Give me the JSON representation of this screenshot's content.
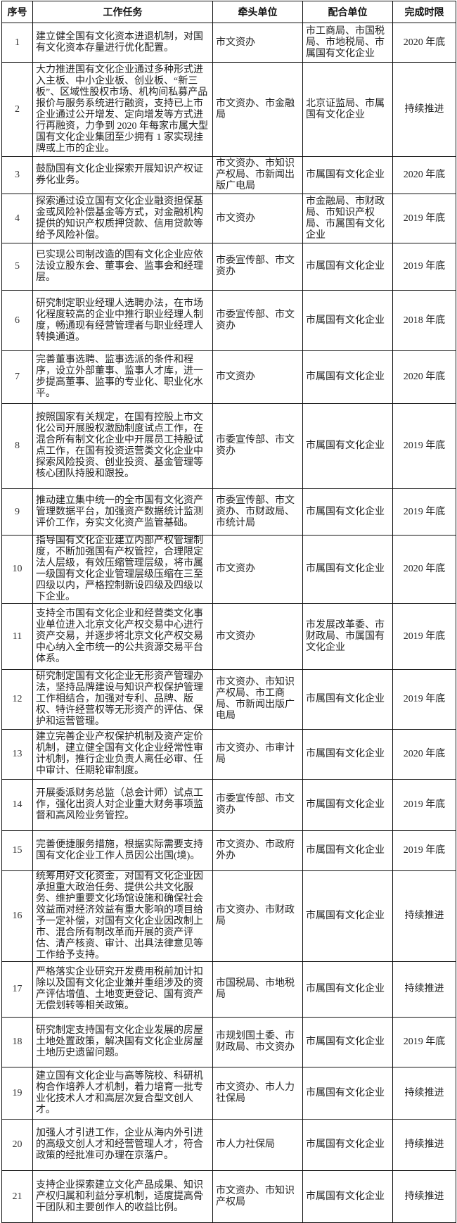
{
  "headers": [
    "序号",
    "工作任务",
    "牵头单位",
    "配合单位",
    "完成时限"
  ],
  "rows": [
    {
      "no": "1",
      "task": "建立健全国有文化资本进退机制，对国有文化资本存量进行优化配置。",
      "lead": "市文资办",
      "coop": "市工商局、市国税局、市地税局、市属国有文化企业",
      "deadline": "2020 年底"
    },
    {
      "no": "2",
      "task": "大力推进国有文化企业通过多种形式进入主板、中小企业板、创业板、“新三板”、区域性股权市场、机构间私募产品报价与服务系统进行融资，支持已上市企业通过公开增发、定向增发等方式进行再融资，力争到 2020 年每家市属大型国有文化企业集团至少拥有 1 家实现挂牌或上市的企业。",
      "lead": "市文资办、市金融局",
      "coop": "北京证监局、市属国有文化企业",
      "deadline": "持续推进"
    },
    {
      "no": "3",
      "task": "鼓励国有文化企业探索开展知识产权证券化业务。",
      "lead": "市文资办、市知识产权局、市新闻出版广电局",
      "coop": "市属国有文化企业",
      "deadline": "2020 年底"
    },
    {
      "no": "4",
      "task": "探索通过设立国有文化企业融资担保基金或风险补偿基金等方式，对金融机构提供的知识产权质押贷款、信用贷款等给予风险补偿。",
      "lead": "市文资办",
      "coop": "市金融局、市财政局、市知识产权局、市属国有文化企业",
      "deadline": "2019 年底"
    },
    {
      "no": "5",
      "task": "已实现公司制改造的国有文化企业应依法设立股东会、董事会、监事会和经理层。",
      "lead": "市委宣传部、市文资办",
      "coop": "市属国有文化企业",
      "deadline": "2019 年底"
    },
    {
      "no": "6",
      "task": "研究制定职业经理人选聘办法，在市场化程度较高的企业中推行职业经理人制度，畅通现有经营管理者与职业经理人转换通道。",
      "lead": "市委宣传部、市文资办",
      "coop": "市属国有文化企业",
      "deadline": "2018 年底"
    },
    {
      "no": "7",
      "task": "完善董事选聘、监事选派的条件和程序，设立外部董事、监事人才库，进一步提高董事、监事的专业化、职业化水平。",
      "lead": "市文资办",
      "coop": "市属国有文化企业",
      "deadline": "2020 年底"
    },
    {
      "no": "8",
      "task": "按照国家有关规定，在国有控股上市文化公司开展股权激励制度试点工作，在混合所有制文化企业中开展员工持股试点工作，在国有投资运营类文化企业中探索风险投资、创业投资、基金管理等核心团队持股和跟投。",
      "lead": "市委宣传部、市文资办",
      "coop": "市属国有文化企业",
      "deadline": "2019 年底"
    },
    {
      "no": "9",
      "task": "推动建立集中统一的全市国有文化资产管理数据平台，加强资产数据统计监测评价工作，夯实文化资产监管基础。",
      "lead": "市委宣传部、市文资办、市财政局、市统计局",
      "coop": "市属国有文化企业",
      "deadline": "2019 年底"
    },
    {
      "no": "10",
      "task": "指导国有文化企业建立内部产权管理制度，不断加强国有产权管控，合理限定法人层级，有效压缩管理层级，将市属一级国有文化企业管理层级压缩在三至四级以内，严格控制新设四级及四级以下企业。",
      "lead": "市文资办",
      "coop": "市属国有文化企业",
      "deadline": "2020 年底"
    },
    {
      "no": "11",
      "task": "支持全市国有文化企业和经营类文化事业单位进入北京文化产权交易中心进行资产交易，并逐步将北京文化产权交易中心纳入全市统一的公共资源交易平台体系。",
      "lead": "市文资办",
      "coop": "市发展改革委、市财政局、市属国有文化企业",
      "deadline": "2019 年底"
    },
    {
      "no": "12",
      "task": "研究制定国有文化企业无形资产管理办法，坚持品牌建设与知识产权保护管理工作相结合，加强对专利、品牌、版权、特许经营权等无形资产的评估、保护和运营管理。",
      "lead": "市文资办、市知识产权局、市工商局、市新闻出版广电局",
      "coop": "市属国有文化企业",
      "deadline": "2019 年底"
    },
    {
      "no": "13",
      "task": "建立完善企业产权保护机制及资产定价机制，建立健全国有文化企业经常性审计机制，推行企业负责人离任必审、任中审计、任期轮审制度。",
      "lead": "市文资办、市审计局",
      "coop": "市属国有文化企业",
      "deadline": "2020 年底"
    },
    {
      "no": "14",
      "task": "开展委派财务总监（总会计师）试点工作，强化出资人对企业重大财务事项监督和高风险业务管控。",
      "lead": "市委宣传部、市文资办",
      "coop": "市属国有文化企业",
      "deadline": "2019 年底"
    },
    {
      "no": "15",
      "task": "完善便捷服务措施，根据实际需要支持国有文化企业工作人员因公出国(境)。",
      "lead": "市文资办、市政府外办",
      "coop": "市属国有文化企业",
      "deadline": "2019 年底"
    },
    {
      "no": "16",
      "task": "统筹用好文化资金，对国有文化企业因承担重大政治任务、提供公共文化服务、维护重要文化场馆设施和确保社会效益而对经济效益有重大影响的项目给予一定补偿，对国有文化企业因改制上市、混合所有制改革而开展的资产评估、清产核资、审计、出具法律意见等工作给予支持。",
      "lead": "市文资办、市财政局",
      "coop": "市属国有文化企业",
      "deadline": "持续推进"
    },
    {
      "no": "17",
      "task": "严格落实企业研究开发费用税前加计扣除以及国有文化企业兼并重组涉及的资产评估增值、土地变更登记、国有资产无偿划转等相关政策。",
      "lead": "市国税局、市地税局",
      "coop": "市属国有文化企业",
      "deadline": "持续推进"
    },
    {
      "no": "18",
      "task": "研究制定支持国有文化企业发展的房屋土地处置政策，解决国有文化企业房屋土地历史遗留问题。",
      "lead": "市规划国土委、市财政局、市文资办",
      "coop": "市属国有文化企业",
      "deadline": "2019 年底"
    },
    {
      "no": "19",
      "task": "建立国有文化企业与高等院校、科研机构合作培养人才机制，着力培育一批专业化技术人才和高层次复合型文创人才。",
      "lead": "市文资办、市人力社保局",
      "coop": "市属国有文化企业",
      "deadline": "持续推进"
    },
    {
      "no": "20",
      "task": "加强人才引进工作，企业从海内外引进的高级文创人才和经营管理人才，符合政策的经批准可办理在京落户。",
      "lead": "市人力社保局",
      "coop": "市属国有文化企业",
      "deadline": "持续推进"
    },
    {
      "no": "21",
      "task": "支持企业探索建立文化产品成果、知识产权归属和利益分享机制，适度提高骨干团队和主要创作人的收益比例。",
      "lead": "市文资办、市知识产权局",
      "coop": "市属国有文化企业",
      "deadline": "持续推进"
    }
  ]
}
